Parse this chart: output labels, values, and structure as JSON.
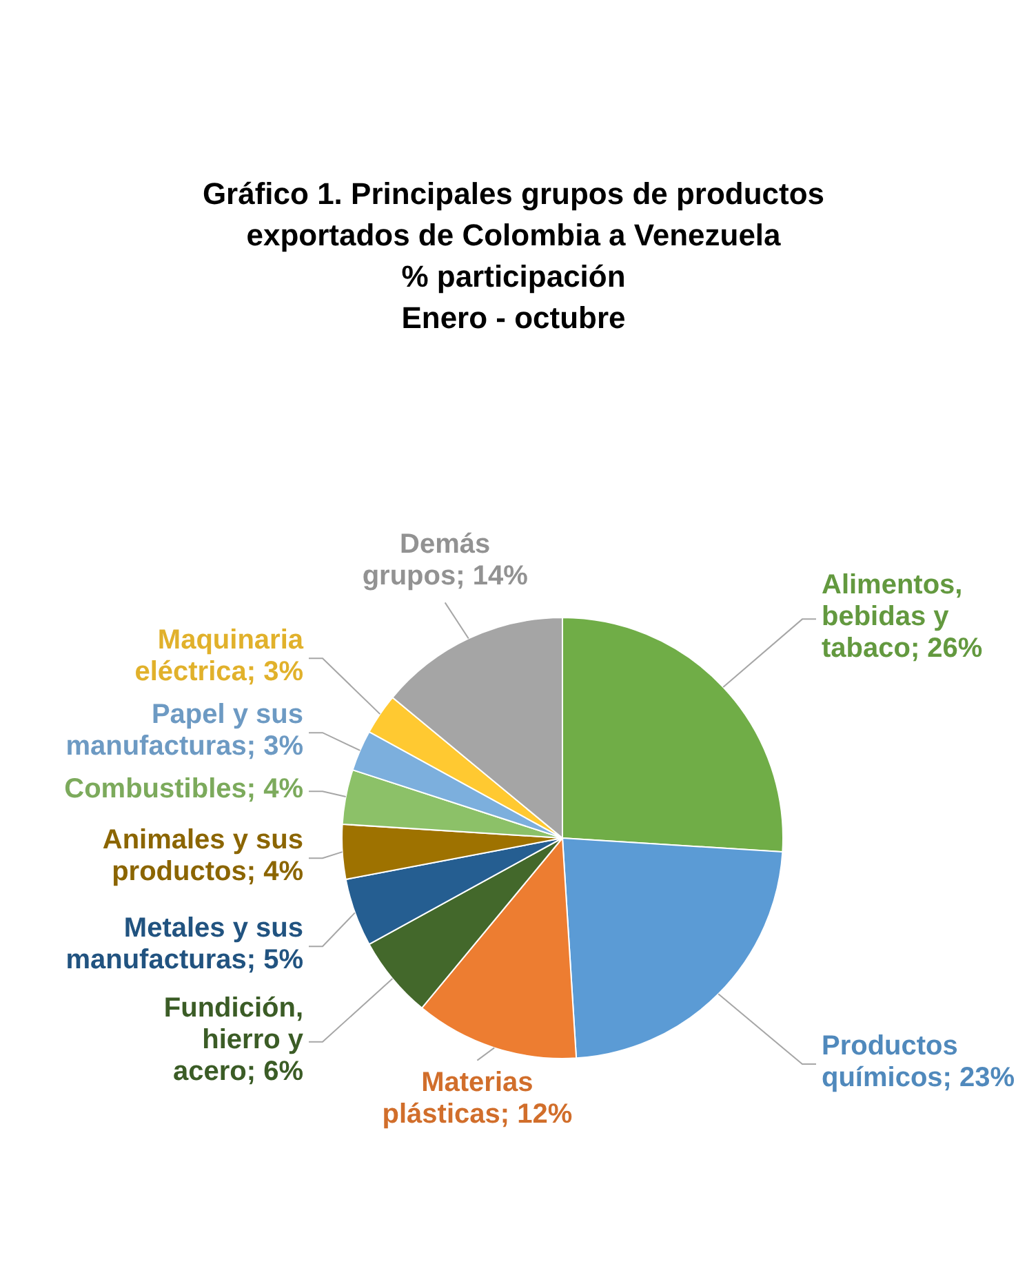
{
  "chart_data": {
    "type": "pie",
    "title": "Gráfico 1. Principales grupos de productos exportados de Colombia a Venezuela\n% participación\nEnero - octubre",
    "categories": [
      "Alimentos, bebidas y tabaco",
      "Productos químicos",
      "Materias plásticas",
      "Fundición, hierro y acero",
      "Metales y sus manufacturas",
      "Animales y sus productos",
      "Combustibles",
      "Papel y sus manufacturas",
      "Maquinaria eléctrica",
      "Demás grupos"
    ],
    "values": [
      26,
      23,
      12,
      6,
      5,
      4,
      4,
      3,
      3,
      14
    ],
    "value_labels": [
      "26%",
      "23%",
      "12%",
      "6%",
      "5%",
      "4%",
      "4%",
      "3%",
      "3%",
      "14%"
    ],
    "colors": [
      "#70ad47",
      "#5b9bd5",
      "#ed7d31",
      "#43682b",
      "#255e91",
      "#9e7200",
      "#8cc168",
      "#7cafdd",
      "#ffc931",
      "#a5a5a5"
    ]
  }
}
